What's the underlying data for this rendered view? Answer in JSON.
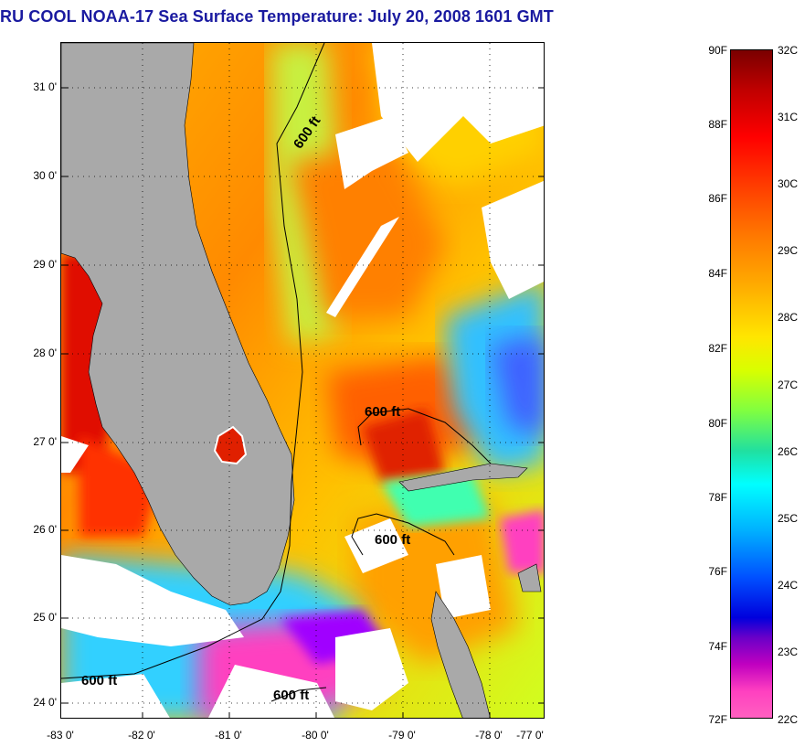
{
  "title": "RU COOL  NOAA-17  Sea Surface Temperature:  July 20, 2008 1601 GMT",
  "y_ticks": [
    "31 0'",
    "30 0'",
    "29 0'",
    "28 0'",
    "27 0'",
    "26 0'",
    "25 0'",
    "24 0'"
  ],
  "x_ticks": [
    "-83 0'",
    "-82 0'",
    "-81 0'",
    "-80 0'",
    "-79 0'",
    "-78 0'",
    "-77 0'"
  ],
  "isobath_label": "600 ft",
  "colorbar": {
    "f_labels": [
      "90F",
      "88F",
      "86F",
      "84F",
      "82F",
      "80F",
      "78F",
      "76F",
      "74F",
      "72F"
    ],
    "c_labels": [
      "32C",
      "31C",
      "30C",
      "29C",
      "28C",
      "27C",
      "26C",
      "25C",
      "24C",
      "23C",
      "22C"
    ]
  },
  "colors": {
    "land": "#a9a9a9",
    "cloud": "#ffffff",
    "title": "#1a1aa0"
  }
}
